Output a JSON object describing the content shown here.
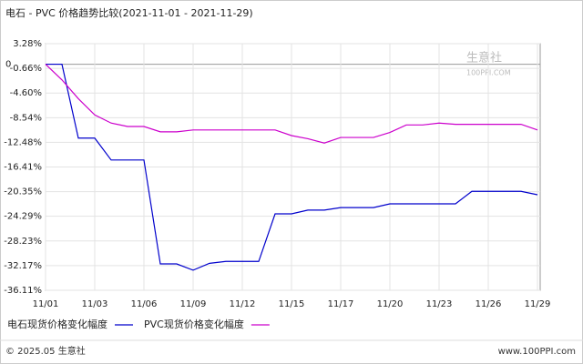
{
  "chart_data": {
    "type": "line",
    "title": "电石 - PVC 价格趋势比较(2021-11-01 - 2021-11-29)",
    "categories": [
      "11/01",
      null,
      null,
      "11/03",
      null,
      null,
      "11/06",
      null,
      null,
      "11/09",
      null,
      null,
      "11/12",
      null,
      null,
      "11/15",
      null,
      null,
      "11/17",
      null,
      null,
      "11/20",
      null,
      null,
      "11/23",
      null,
      null,
      "11/26",
      null,
      null,
      "11/29"
    ],
    "series": [
      {
        "name": "电石现货价格变化幅度",
        "color": "#0000cc",
        "values": [
          0,
          0,
          -11.8,
          -11.8,
          -15.3,
          -15.3,
          -15.3,
          -31.9,
          -31.9,
          -32.9,
          -31.8,
          -31.5,
          -31.5,
          -31.5,
          -23.9,
          -23.9,
          -23.3,
          -23.3,
          -22.9,
          -22.9,
          -22.9,
          -22.3,
          -22.3,
          -22.3,
          -22.3,
          -22.3,
          -20.3,
          -20.3,
          -20.3,
          -20.3,
          -20.85
        ]
      },
      {
        "name": "PVC现货价格变化幅度",
        "color": "#cc00cc",
        "values": [
          0,
          -2.5,
          -5.5,
          -8.1,
          -9.4,
          -9.95,
          -9.95,
          -10.8,
          -10.8,
          -10.5,
          -10.5,
          -10.5,
          -10.5,
          -10.5,
          -10.5,
          -11.4,
          -11.9,
          -12.6,
          -11.7,
          -11.7,
          -11.7,
          -10.9,
          -9.7,
          -9.7,
          -9.4,
          -9.6,
          -9.6,
          -9.6,
          -9.6,
          -9.6,
          -10.5
        ]
      }
    ],
    "ylim": [
      -36.11,
      3.28
    ],
    "yticks": [
      {
        "value": 3.28,
        "label": "3.28%"
      },
      0,
      {
        "value": -0.66,
        "label": "-0.66%"
      },
      {
        "value": -4.6,
        "label": "-4.60%"
      },
      {
        "value": -8.54,
        "label": "-8.54%"
      },
      {
        "value": -12.48,
        "label": "-12.48%"
      },
      {
        "value": -16.41,
        "label": "-16.41%"
      },
      {
        "value": -20.35,
        "label": "-20.35%"
      },
      {
        "value": -24.29,
        "label": "-24.29%"
      },
      {
        "value": -28.23,
        "label": "-28.23%"
      },
      {
        "value": -32.17,
        "label": "-32.17%"
      },
      {
        "value": -36.11,
        "label": "-36.11%"
      }
    ],
    "grid": true,
    "footer_left": "© 2025.05 生意社",
    "footer_right": "www.100PPI.com",
    "watermark": "生意社",
    "watermark_sub": "100PPI.COM"
  }
}
